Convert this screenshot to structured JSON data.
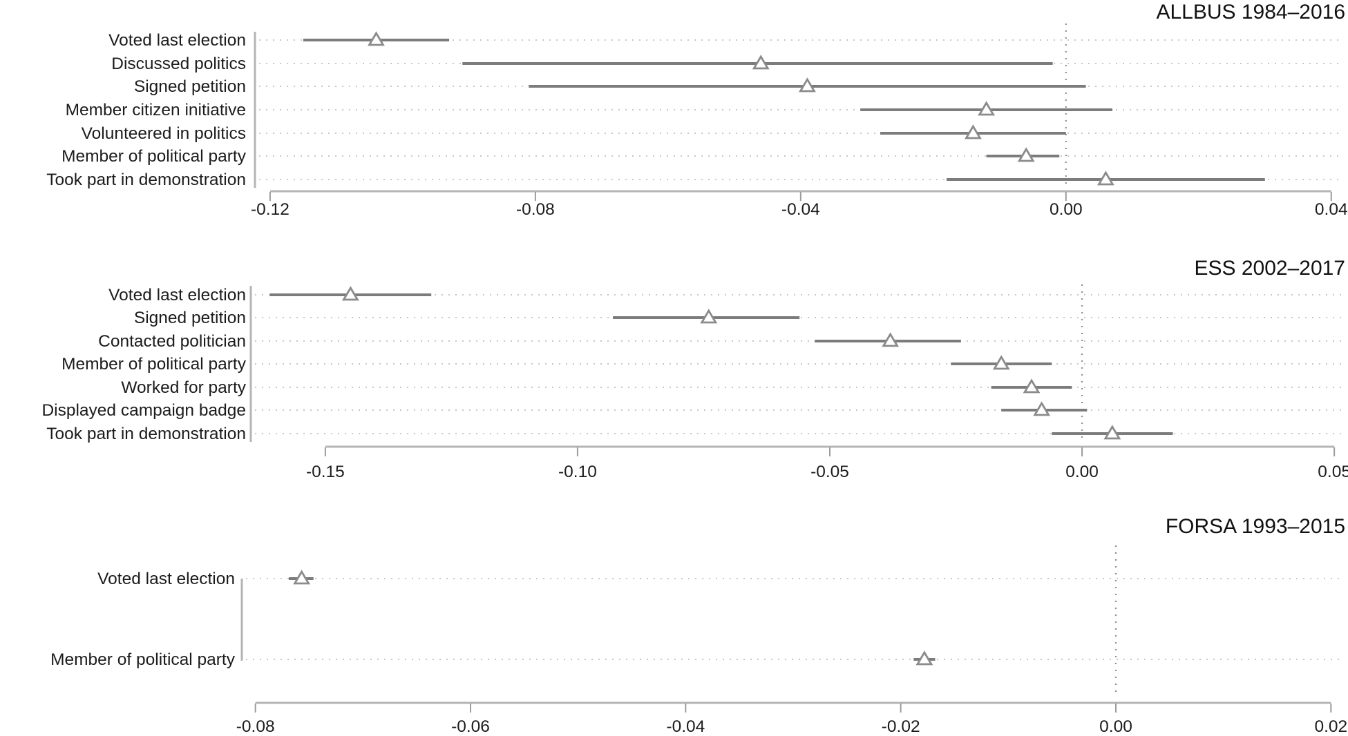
{
  "figure": {
    "description": "Three stacked coefficient (forest) plots of political participation measures with point estimates (open triangles) and confidence intervals",
    "background": "#ffffff"
  },
  "style": {
    "ci_line": "#7c7c7c",
    "marker_stroke": "#8b8b8b",
    "marker_fill": "#ffffff",
    "row_dots": "#c7c7c7",
    "zero_dots": "#8f8f8f",
    "axis_line": "#b4b4b4",
    "axis_tick": "#9b9b9b",
    "yaxis_line": "#b4b4b4",
    "text": "#1c1c1c"
  },
  "chart_data": [
    {
      "type": "scatter",
      "variant": "coefficient-forest-plot",
      "marker": "open-triangle-up",
      "title": "ALLBUS 1984–2016",
      "legend": null,
      "grid": "dotted-horizontal-rows",
      "zero_reference_line": 0,
      "xlim": [
        -0.1227,
        0.0419
      ],
      "xticks": {
        "values": [
          -0.12,
          -0.08,
          -0.04,
          0.0,
          0.04
        ],
        "labels": [
          "-0.12",
          "-0.08",
          "-0.04",
          "0.00",
          "0.04"
        ]
      },
      "categories": [
        "Voted last election",
        "Discussed politics",
        "Signed petition",
        "Member citizen initiative",
        "Volunteered in politics",
        "Member of political party",
        "Took part in demonstration"
      ],
      "points": [
        {
          "estimate": -0.104,
          "ci_low": -0.115,
          "ci_high": -0.093
        },
        {
          "estimate": -0.046,
          "ci_low": -0.091,
          "ci_high": -0.002
        },
        {
          "estimate": -0.039,
          "ci_low": -0.081,
          "ci_high": 0.003
        },
        {
          "estimate": -0.012,
          "ci_low": -0.031,
          "ci_high": 0.007
        },
        {
          "estimate": -0.014,
          "ci_low": -0.028,
          "ci_high": 0.0
        },
        {
          "estimate": -0.006,
          "ci_low": -0.012,
          "ci_high": -0.001
        },
        {
          "estimate": 0.006,
          "ci_low": -0.018,
          "ci_high": 0.03
        }
      ]
    },
    {
      "type": "scatter",
      "variant": "coefficient-forest-plot",
      "marker": "open-triangle-up",
      "title": "ESS 2002–2017",
      "legend": null,
      "grid": "dotted-horizontal-rows",
      "zero_reference_line": 0,
      "xlim": [
        -0.1645,
        0.0519
      ],
      "xticks": {
        "values": [
          -0.15,
          -0.1,
          -0.05,
          0.0,
          0.05
        ],
        "labels": [
          "-0.15",
          "-0.10",
          "-0.05",
          "0.00",
          "0.05"
        ]
      },
      "categories": [
        "Voted last election",
        "Signed petition",
        "Contacted politician",
        "Member of political party",
        "Worked for party",
        "Displayed campaign badge",
        "Took part in demonstration"
      ],
      "points": [
        {
          "estimate": -0.145,
          "ci_low": -0.161,
          "ci_high": -0.129
        },
        {
          "estimate": -0.074,
          "ci_low": -0.093,
          "ci_high": -0.056
        },
        {
          "estimate": -0.038,
          "ci_low": -0.053,
          "ci_high": -0.024
        },
        {
          "estimate": -0.016,
          "ci_low": -0.026,
          "ci_high": -0.006
        },
        {
          "estimate": -0.01,
          "ci_low": -0.018,
          "ci_high": -0.002
        },
        {
          "estimate": -0.008,
          "ci_low": -0.016,
          "ci_high": 0.001
        },
        {
          "estimate": 0.006,
          "ci_low": -0.006,
          "ci_high": 0.018
        }
      ]
    },
    {
      "type": "scatter",
      "variant": "coefficient-forest-plot",
      "marker": "open-triangle-up",
      "title": "FORSA 1993–2015",
      "legend": null,
      "grid": "dotted-horizontal-rows",
      "zero_reference_line": 0,
      "xlim": [
        -0.0803,
        0.0212
      ],
      "xticks": {
        "values": [
          -0.08,
          -0.06,
          -0.04,
          -0.02,
          0.0,
          0.02
        ],
        "labels": [
          "-0.08",
          "-0.06",
          "-0.04",
          "-0.02",
          "0.00",
          "0.02"
        ]
      },
      "categories": [
        "Voted last election",
        "Member of political party"
      ],
      "points": [
        {
          "estimate": -0.0757,
          "ci_low": -0.0769,
          "ci_high": -0.0746
        },
        {
          "estimate": -0.0178,
          "ci_low": -0.0188,
          "ci_high": -0.0168
        }
      ]
    }
  ]
}
